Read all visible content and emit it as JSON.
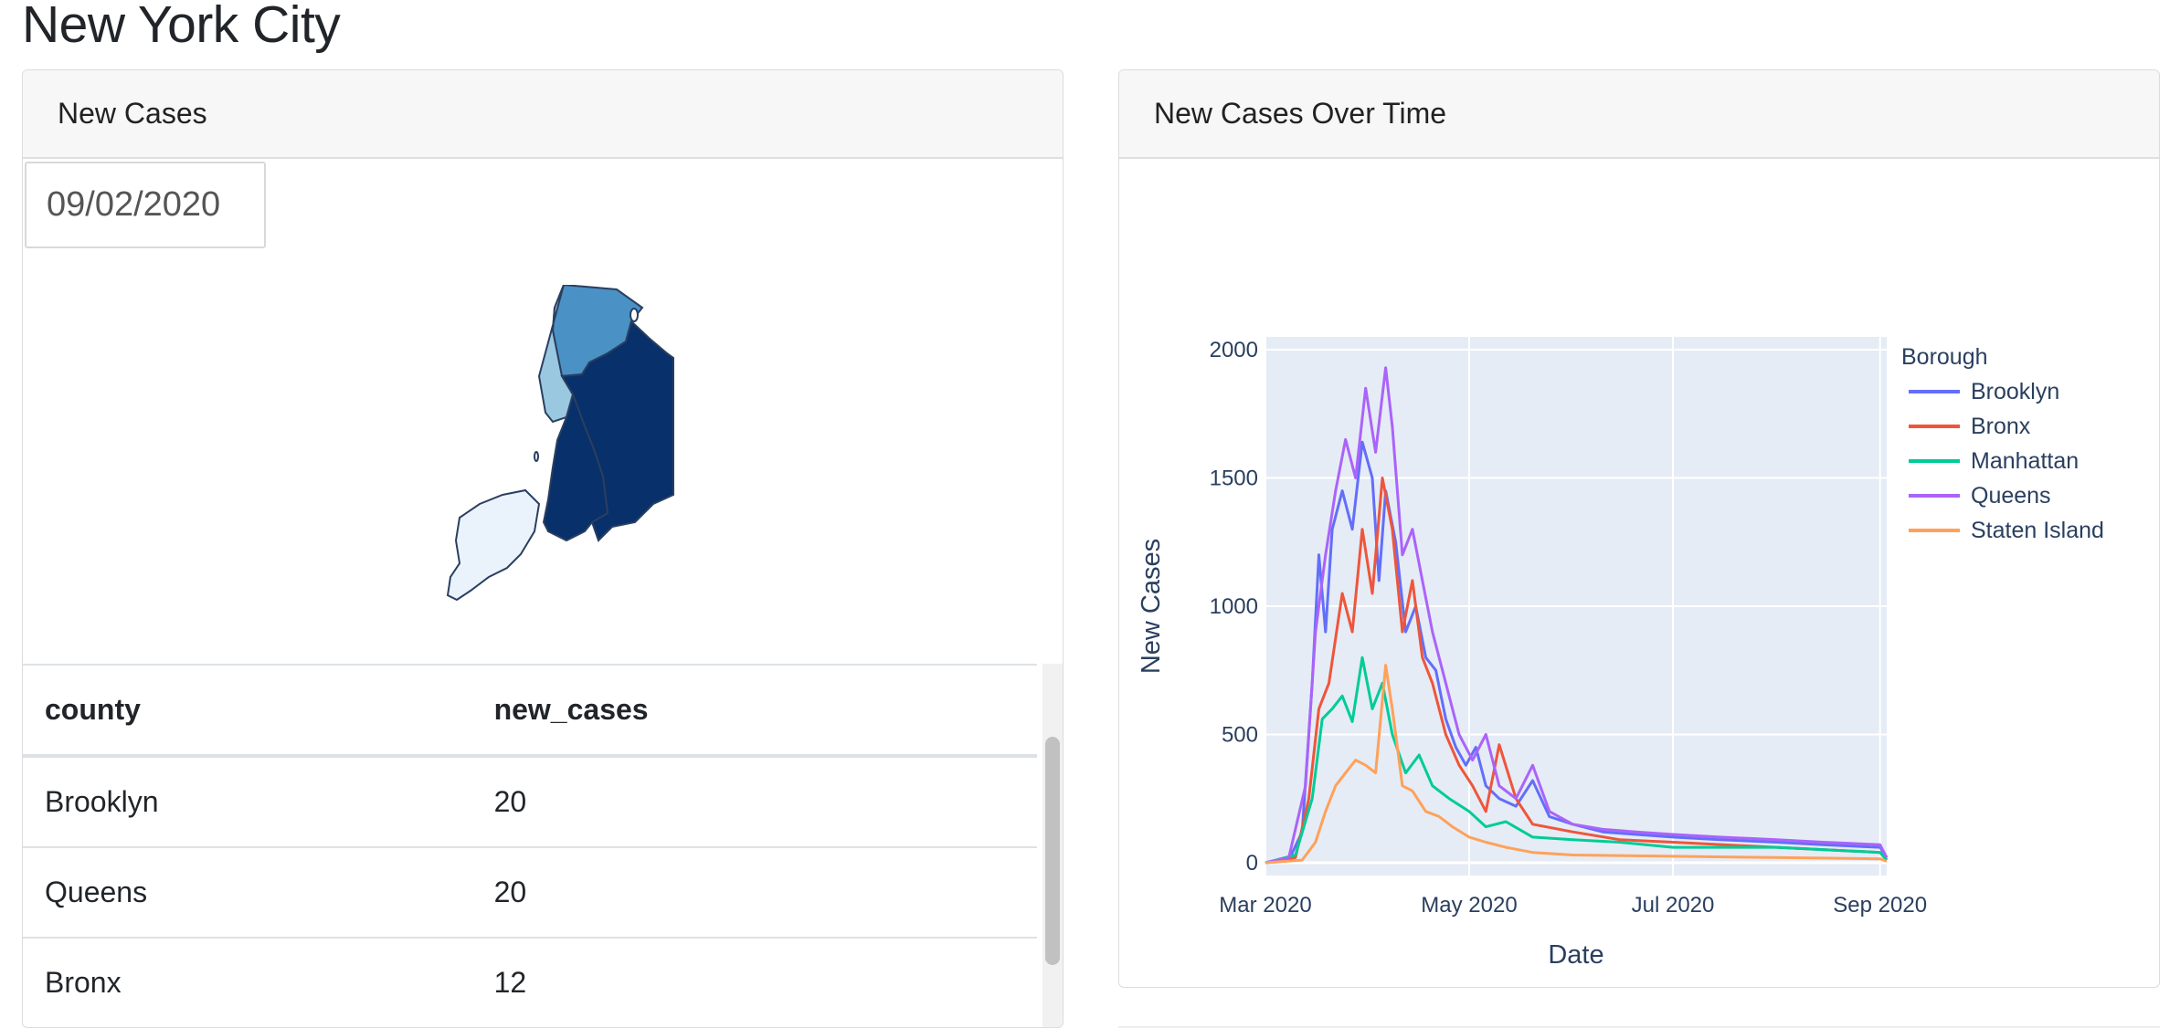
{
  "page": {
    "title": "New York City"
  },
  "left_card": {
    "header": "New Cases",
    "date_value": "09/02/2020",
    "table": {
      "columns": [
        "county",
        "new_cases"
      ],
      "rows": [
        [
          "Brooklyn",
          "20"
        ],
        [
          "Queens",
          "20"
        ],
        [
          "Bronx",
          "12"
        ]
      ]
    },
    "map_colors": {
      "Bronx": "#4a91c6",
      "Manhattan": "#9ac8e0",
      "Queens": "#08306b",
      "Brooklyn": "#08306b",
      "Staten Island": "#eaf3fb"
    }
  },
  "right_card": {
    "header": "New Cases Over Time"
  },
  "chart_data": {
    "type": "line",
    "title": "",
    "xlabel": "Date",
    "ylabel": "New Cases",
    "x_range": [
      "2020-03-01",
      "2020-09-03"
    ],
    "ylim": [
      -50,
      2050
    ],
    "x_ticks": [
      {
        "date": "2020-03-01",
        "label": "Mar 2020"
      },
      {
        "date": "2020-05-01",
        "label": "May 2020"
      },
      {
        "date": "2020-07-01",
        "label": "Jul 2020"
      },
      {
        "date": "2020-09-01",
        "label": "Sep 2020"
      }
    ],
    "y_ticks": [
      0,
      500,
      1000,
      1500,
      2000
    ],
    "grid": true,
    "legend_title": "Borough",
    "legend_position": "top-right",
    "series": [
      {
        "name": "Brooklyn",
        "color": "#636efa",
        "points": [
          [
            "2020-03-01",
            0
          ],
          [
            "2020-03-08",
            10
          ],
          [
            "2020-03-12",
            120
          ],
          [
            "2020-03-15",
            700
          ],
          [
            "2020-03-17",
            1200
          ],
          [
            "2020-03-19",
            900
          ],
          [
            "2020-03-21",
            1300
          ],
          [
            "2020-03-24",
            1450
          ],
          [
            "2020-03-27",
            1300
          ],
          [
            "2020-03-30",
            1640
          ],
          [
            "2020-04-02",
            1500
          ],
          [
            "2020-04-04",
            1100
          ],
          [
            "2020-04-06",
            1450
          ],
          [
            "2020-04-09",
            1250
          ],
          [
            "2020-04-12",
            900
          ],
          [
            "2020-04-15",
            1000
          ],
          [
            "2020-04-18",
            800
          ],
          [
            "2020-04-21",
            750
          ],
          [
            "2020-04-24",
            560
          ],
          [
            "2020-04-27",
            450
          ],
          [
            "2020-04-30",
            380
          ],
          [
            "2020-05-03",
            450
          ],
          [
            "2020-05-06",
            300
          ],
          [
            "2020-05-10",
            250
          ],
          [
            "2020-05-15",
            220
          ],
          [
            "2020-05-20",
            320
          ],
          [
            "2020-05-25",
            180
          ],
          [
            "2020-06-01",
            150
          ],
          [
            "2020-06-10",
            120
          ],
          [
            "2020-06-20",
            110
          ],
          [
            "2020-07-01",
            100
          ],
          [
            "2020-07-15",
            90
          ],
          [
            "2020-08-01",
            80
          ],
          [
            "2020-08-15",
            70
          ],
          [
            "2020-09-01",
            60
          ],
          [
            "2020-09-03",
            20
          ]
        ]
      },
      {
        "name": "Bronx",
        "color": "#ef553b",
        "points": [
          [
            "2020-03-01",
            0
          ],
          [
            "2020-03-10",
            20
          ],
          [
            "2020-03-14",
            250
          ],
          [
            "2020-03-17",
            600
          ],
          [
            "2020-03-20",
            700
          ],
          [
            "2020-03-24",
            1050
          ],
          [
            "2020-03-27",
            900
          ],
          [
            "2020-03-30",
            1300
          ],
          [
            "2020-04-02",
            1050
          ],
          [
            "2020-04-05",
            1500
          ],
          [
            "2020-04-08",
            1300
          ],
          [
            "2020-04-11",
            900
          ],
          [
            "2020-04-14",
            1100
          ],
          [
            "2020-04-17",
            800
          ],
          [
            "2020-04-20",
            700
          ],
          [
            "2020-04-24",
            500
          ],
          [
            "2020-04-28",
            380
          ],
          [
            "2020-05-02",
            300
          ],
          [
            "2020-05-06",
            200
          ],
          [
            "2020-05-10",
            460
          ],
          [
            "2020-05-15",
            250
          ],
          [
            "2020-05-20",
            150
          ],
          [
            "2020-06-01",
            120
          ],
          [
            "2020-06-15",
            90
          ],
          [
            "2020-07-01",
            80
          ],
          [
            "2020-08-01",
            60
          ],
          [
            "2020-09-01",
            40
          ],
          [
            "2020-09-03",
            12
          ]
        ]
      },
      {
        "name": "Manhattan",
        "color": "#00cc96",
        "points": [
          [
            "2020-03-01",
            0
          ],
          [
            "2020-03-10",
            30
          ],
          [
            "2020-03-15",
            250
          ],
          [
            "2020-03-18",
            560
          ],
          [
            "2020-03-21",
            600
          ],
          [
            "2020-03-24",
            650
          ],
          [
            "2020-03-27",
            550
          ],
          [
            "2020-03-30",
            800
          ],
          [
            "2020-04-02",
            600
          ],
          [
            "2020-04-05",
            700
          ],
          [
            "2020-04-08",
            500
          ],
          [
            "2020-04-12",
            350
          ],
          [
            "2020-04-16",
            420
          ],
          [
            "2020-04-20",
            300
          ],
          [
            "2020-04-25",
            250
          ],
          [
            "2020-05-01",
            200
          ],
          [
            "2020-05-06",
            140
          ],
          [
            "2020-05-12",
            160
          ],
          [
            "2020-05-20",
            100
          ],
          [
            "2020-06-01",
            90
          ],
          [
            "2020-06-15",
            80
          ],
          [
            "2020-07-01",
            60
          ],
          [
            "2020-08-01",
            60
          ],
          [
            "2020-09-01",
            40
          ],
          [
            "2020-09-03",
            10
          ]
        ]
      },
      {
        "name": "Queens",
        "color": "#ab63fa",
        "points": [
          [
            "2020-03-01",
            0
          ],
          [
            "2020-03-08",
            20
          ],
          [
            "2020-03-13",
            300
          ],
          [
            "2020-03-16",
            900
          ],
          [
            "2020-03-19",
            1200
          ],
          [
            "2020-03-22",
            1450
          ],
          [
            "2020-03-25",
            1650
          ],
          [
            "2020-03-28",
            1500
          ],
          [
            "2020-03-31",
            1850
          ],
          [
            "2020-04-03",
            1600
          ],
          [
            "2020-04-06",
            1930
          ],
          [
            "2020-04-08",
            1700
          ],
          [
            "2020-04-11",
            1200
          ],
          [
            "2020-04-14",
            1300
          ],
          [
            "2020-04-17",
            1100
          ],
          [
            "2020-04-20",
            900
          ],
          [
            "2020-04-24",
            700
          ],
          [
            "2020-04-28",
            500
          ],
          [
            "2020-05-02",
            400
          ],
          [
            "2020-05-06",
            500
          ],
          [
            "2020-05-10",
            300
          ],
          [
            "2020-05-15",
            250
          ],
          [
            "2020-05-20",
            380
          ],
          [
            "2020-05-25",
            200
          ],
          [
            "2020-06-01",
            150
          ],
          [
            "2020-06-10",
            130
          ],
          [
            "2020-06-20",
            120
          ],
          [
            "2020-07-01",
            110
          ],
          [
            "2020-07-15",
            100
          ],
          [
            "2020-08-01",
            90
          ],
          [
            "2020-08-15",
            80
          ],
          [
            "2020-09-01",
            70
          ],
          [
            "2020-09-03",
            20
          ]
        ]
      },
      {
        "name": "Staten Island",
        "color": "#ffa15a",
        "points": [
          [
            "2020-03-01",
            0
          ],
          [
            "2020-03-12",
            10
          ],
          [
            "2020-03-16",
            80
          ],
          [
            "2020-03-19",
            200
          ],
          [
            "2020-03-22",
            300
          ],
          [
            "2020-03-25",
            350
          ],
          [
            "2020-03-28",
            400
          ],
          [
            "2020-03-31",
            380
          ],
          [
            "2020-04-03",
            350
          ],
          [
            "2020-04-06",
            770
          ],
          [
            "2020-04-08",
            600
          ],
          [
            "2020-04-11",
            300
          ],
          [
            "2020-04-14",
            280
          ],
          [
            "2020-04-18",
            200
          ],
          [
            "2020-04-22",
            180
          ],
          [
            "2020-04-26",
            140
          ],
          [
            "2020-05-01",
            100
          ],
          [
            "2020-05-06",
            80
          ],
          [
            "2020-05-12",
            60
          ],
          [
            "2020-05-20",
            40
          ],
          [
            "2020-06-01",
            30
          ],
          [
            "2020-07-01",
            25
          ],
          [
            "2020-08-01",
            20
          ],
          [
            "2020-09-01",
            15
          ],
          [
            "2020-09-03",
            5
          ]
        ]
      }
    ]
  }
}
